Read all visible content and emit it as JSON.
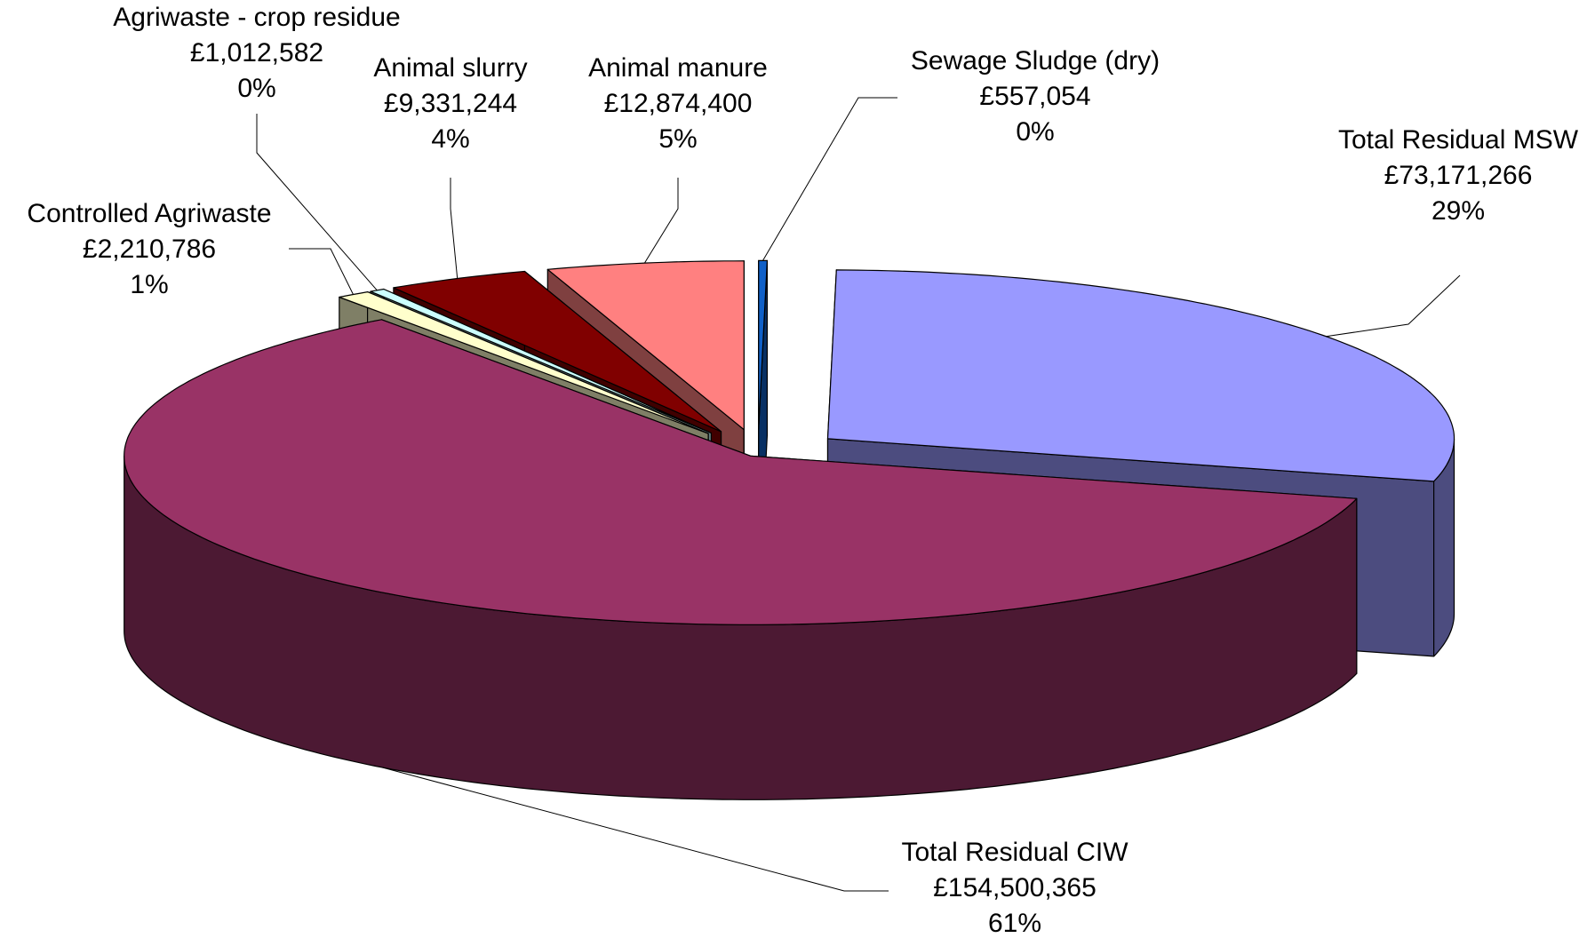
{
  "chart_data": {
    "type": "pie",
    "categories": [
      "Sewage Sludge (dry)",
      "Total Residual MSW",
      "Total Residual CIW",
      "Controlled Agriwaste",
      "Agriwaste - crop residue",
      "Animal slurry",
      "Animal manure"
    ],
    "values": [
      557054,
      73171266,
      154500365,
      2210786,
      1012582,
      9331244,
      12874400
    ],
    "value_labels": [
      "£557,054",
      "£73,171,266",
      "£154,500,365",
      "£2,210,786",
      "£1,012,582",
      "£9,331,244",
      "£12,874,400"
    ],
    "percent_labels": [
      "0%",
      "29%",
      "61%",
      "1%",
      "0%",
      "4%",
      "5%"
    ],
    "colors": [
      "#1060c8",
      "#9999ff",
      "#993366",
      "#ffffcc",
      "#ccffff",
      "#800000",
      "#ff8080"
    ],
    "three_d": true
  }
}
